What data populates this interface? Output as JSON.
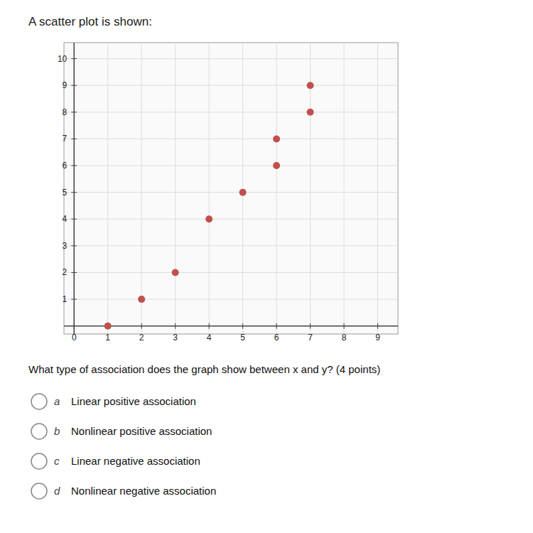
{
  "chart_data": {
    "type": "scatter",
    "title": "A scatter plot is shown:",
    "x": [
      1,
      2,
      3,
      4,
      5,
      6,
      6,
      7,
      7
    ],
    "values": [
      0,
      1,
      2,
      4,
      5,
      6,
      7,
      8,
      9
    ],
    "color": "#c0504d",
    "xlim": [
      -0.3,
      9.6
    ],
    "ylim": [
      -0.3,
      10.6
    ],
    "xticks": [
      0,
      1,
      2,
      3,
      4,
      5,
      6,
      7,
      8,
      9
    ],
    "yticks": [
      1,
      2,
      3,
      4,
      5,
      6,
      7,
      8,
      9,
      10
    ],
    "grid": true,
    "annotations": [
      "What type of association does the graph show between x and y? (4 points)",
      "a",
      "Linear positive association",
      "b",
      "Nonlinear positive association",
      "c",
      "Linear negative association",
      "d",
      "Nonlinear negative association"
    ]
  }
}
